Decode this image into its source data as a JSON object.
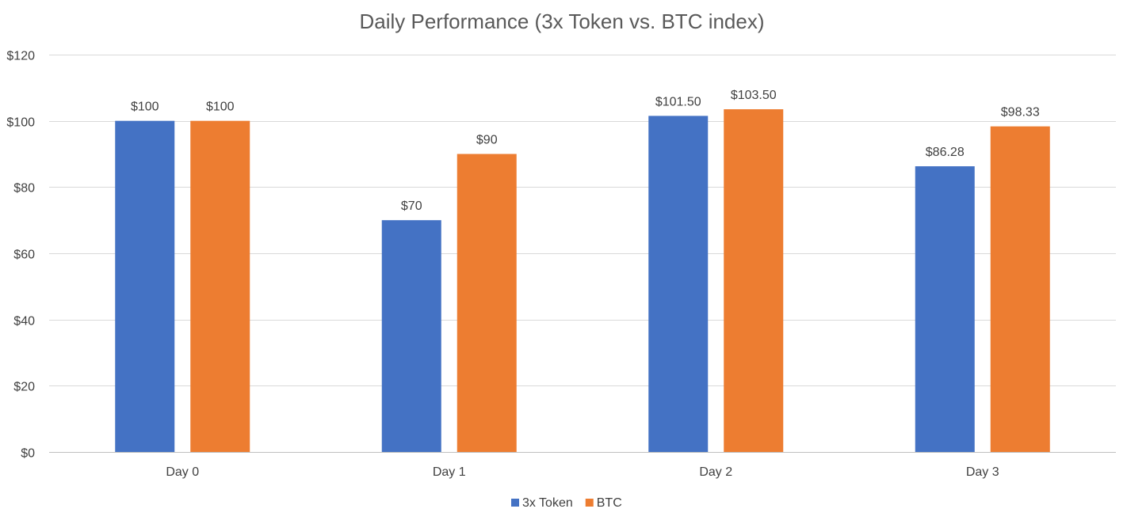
{
  "chart_data": {
    "type": "bar",
    "title": "Daily Performance (3x Token vs. BTC index)",
    "xlabel": "",
    "ylabel": "",
    "categories": [
      "Day 0",
      "Day 1",
      "Day 2",
      "Day 3"
    ],
    "series": [
      {
        "name": "3x Token",
        "color": "#4472c4",
        "values": [
          100,
          70,
          101.5,
          86.28
        ],
        "labels": [
          "$100",
          "$70",
          "$101.50",
          "$86.28"
        ]
      },
      {
        "name": "BTC",
        "color": "#ed7d31",
        "values": [
          100,
          90,
          103.5,
          98.33
        ],
        "labels": [
          "$100",
          "$90",
          "$103.50",
          "$98.33"
        ]
      }
    ],
    "ylim": [
      0,
      120
    ],
    "yticks": [
      0,
      20,
      40,
      60,
      80,
      100,
      120
    ],
    "ytick_labels": [
      "$0",
      "$20",
      "$40",
      "$60",
      "$80",
      "$100",
      "$120"
    ],
    "grid": true,
    "legend_position": "bottom"
  }
}
